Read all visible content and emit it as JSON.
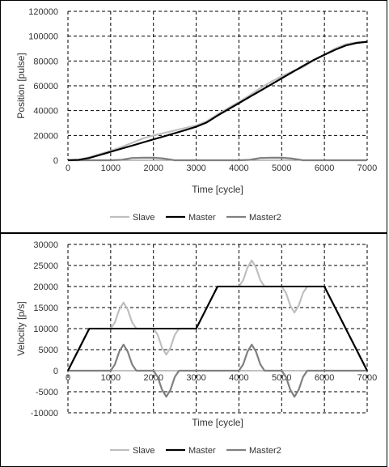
{
  "charts": [
    {
      "type": "line",
      "xlabel": "Time [cycle]",
      "ylabel": "Position [pulse]",
      "xlim": [
        0,
        7000
      ],
      "ylim": [
        0,
        120000
      ],
      "xticks": [
        "0",
        "1000",
        "2000",
        "3000",
        "4000",
        "5000",
        "6000",
        "7000"
      ],
      "yticks": [
        "0",
        "20000",
        "40000",
        "60000",
        "80000",
        "100000",
        "120000"
      ],
      "grid": "dashed",
      "legend_position": "bottom",
      "series": [
        {
          "name": "Slave",
          "color": "#bfbfbf",
          "x": [
            0,
            250,
            500,
            750,
            1000,
            1250,
            1500,
            1750,
            2000,
            2250,
            2500,
            2750,
            3000,
            3250,
            3500,
            3750,
            4000,
            4250,
            4500,
            4750,
            5000,
            5250,
            5500,
            5750,
            6000,
            6250,
            6500,
            6750,
            7000
          ],
          "y": [
            0,
            200,
            2500,
            5000,
            7600,
            10700,
            14000,
            17500,
            20000,
            22000,
            24000,
            26000,
            28000,
            31500,
            37000,
            42000,
            47000,
            52300,
            58000,
            63200,
            67700,
            71600,
            75000,
            80500,
            85000,
            90000,
            93500,
            95000,
            95500
          ]
        },
        {
          "name": "Master",
          "color": "#000000",
          "x": [
            0,
            250,
            500,
            750,
            1000,
            1250,
            1500,
            1750,
            2000,
            2250,
            2500,
            2750,
            3000,
            3250,
            3500,
            3750,
            4000,
            4250,
            4500,
            4750,
            5000,
            5250,
            5500,
            5750,
            6000,
            6250,
            6500,
            6750,
            7000
          ],
          "y": [
            0,
            300,
            1800,
            4300,
            6800,
            9300,
            11800,
            14300,
            16800,
            19300,
            21800,
            24300,
            27000,
            30500,
            36000,
            41000,
            46000,
            51000,
            56000,
            61000,
            66000,
            71000,
            76000,
            80800,
            85000,
            89000,
            92500,
            94500,
            95500
          ]
        },
        {
          "name": "Master2",
          "color": "#808080",
          "x": [
            0,
            1000,
            1250,
            1500,
            1750,
            2000,
            2250,
            2500,
            3000,
            4000,
            4250,
            4500,
            4750,
            5000,
            5250,
            5500,
            7000
          ],
          "y": [
            0,
            0,
            300,
            1800,
            2000,
            2000,
            1400,
            0,
            0,
            0,
            300,
            1800,
            2000,
            2000,
            1400,
            0,
            0
          ]
        }
      ]
    },
    {
      "type": "line",
      "xlabel": "Time [cycle]",
      "ylabel": "Velocity [p/s]",
      "xlim": [
        0,
        7000
      ],
      "ylim": [
        -10000,
        30000
      ],
      "xticks": [
        "0",
        "1000",
        "2000",
        "3000",
        "4000",
        "5000",
        "6000",
        "7000"
      ],
      "yticks": [
        "-10000",
        "-5000",
        "0",
        "5000",
        "10000",
        "15000",
        "20000",
        "25000",
        "30000"
      ],
      "grid": "dashed",
      "legend_position": "bottom",
      "series": [
        {
          "name": "Slave",
          "color": "#bfbfbf",
          "x": [
            0,
            500,
            1000,
            1100,
            1200,
            1300,
            1400,
            1500,
            1600,
            2000,
            2100,
            2200,
            2300,
            2400,
            2500,
            2600,
            3000,
            3500,
            4000,
            4100,
            4200,
            4300,
            4400,
            4500,
            4600,
            5000,
            5100,
            5200,
            5300,
            5400,
            5500,
            5600,
            6000,
            7000
          ],
          "y": [
            0,
            10000,
            10000,
            11500,
            14500,
            16200,
            14500,
            11500,
            10000,
            10000,
            8500,
            5500,
            3800,
            5500,
            8500,
            10000,
            10000,
            20000,
            20000,
            21500,
            24500,
            26200,
            24500,
            21500,
            20000,
            20000,
            18500,
            15500,
            13800,
            15500,
            18500,
            20000,
            20000,
            0
          ]
        },
        {
          "name": "Master",
          "color": "#000000",
          "x": [
            0,
            500,
            3000,
            3500,
            6000,
            7000
          ],
          "y": [
            0,
            10000,
            10000,
            20000,
            20000,
            0
          ]
        },
        {
          "name": "Master2",
          "color": "#808080",
          "x": [
            0,
            1000,
            1100,
            1200,
            1300,
            1400,
            1500,
            1600,
            2000,
            2100,
            2200,
            2300,
            2400,
            2500,
            2600,
            4000,
            4100,
            4200,
            4300,
            4400,
            4500,
            4600,
            5000,
            5100,
            5200,
            5300,
            5400,
            5500,
            5600,
            7000
          ],
          "y": [
            0,
            0,
            1500,
            4500,
            6200,
            4500,
            1500,
            0,
            0,
            -1500,
            -4500,
            -6200,
            -4500,
            -1500,
            0,
            0,
            1500,
            4500,
            6200,
            4500,
            1500,
            0,
            0,
            -1500,
            -4500,
            -6200,
            -4500,
            -1500,
            0,
            0
          ]
        }
      ]
    }
  ]
}
